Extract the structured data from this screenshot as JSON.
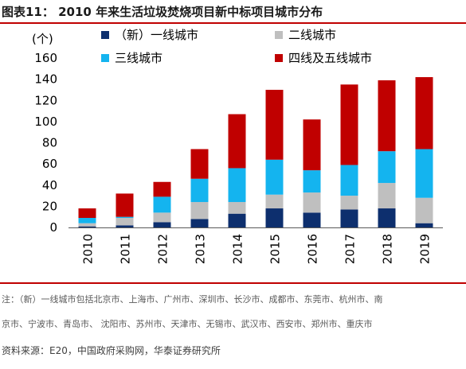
{
  "title": "图表11：  2010 年来生活垃圾焚烧项目新中标项目城市分布",
  "note_line1": "注：（新）一线城市包括北京市、上海市、广州市、深圳市、长沙市、成都市、东莞市、杭州市、南",
  "note_line2": "京市、宁波市、青岛市、 沈阳市、苏州市、天津市、无锡市、武汉市、西安市、郑州市、重庆市",
  "source": "资料来源：E20，中国政府采购网，华泰证券研究所",
  "colors": {
    "tier1": "#0d2f6e",
    "tier2": "#bfbfbf",
    "tier3": "#14b4ef",
    "tier45": "#c00000",
    "accent": "#c00000"
  },
  "chart_data": {
    "type": "bar",
    "stacked": true,
    "ylabel": "(个)",
    "ylim": [
      0,
      160
    ],
    "yticks": [
      0,
      20,
      40,
      60,
      80,
      100,
      120,
      140,
      160
    ],
    "grid": false,
    "legend_position": "top",
    "categories": [
      "2010",
      "2011",
      "2012",
      "2013",
      "2014",
      "2015",
      "2016",
      "2017",
      "2018",
      "2019"
    ],
    "series": [
      {
        "name": "（新）一线城市",
        "color_key": "tier1",
        "values": [
          1,
          2,
          5,
          8,
          13,
          18,
          14,
          17,
          18,
          4
        ]
      },
      {
        "name": "二线城市",
        "color_key": "tier2",
        "values": [
          3,
          7,
          9,
          16,
          11,
          13,
          19,
          13,
          24,
          24
        ]
      },
      {
        "name": "三线城市",
        "color_key": "tier3",
        "values": [
          5,
          1,
          15,
          22,
          32,
          33,
          21,
          29,
          30,
          46
        ]
      },
      {
        "name": "四线及五线城市",
        "color_key": "tier45",
        "values": [
          9,
          22,
          14,
          28,
          51,
          66,
          48,
          76,
          67,
          68
        ]
      }
    ]
  }
}
